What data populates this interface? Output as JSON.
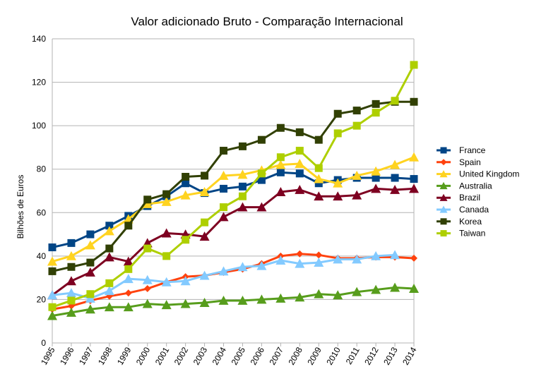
{
  "chart_data": {
    "type": "line",
    "title": "Valor adicionado Bruto - Comparação Internacional",
    "xlabel": "",
    "ylabel": "Bilhões de Euros",
    "ylim": [
      0,
      140
    ],
    "y_ticks": [
      0,
      20,
      40,
      60,
      80,
      100,
      120,
      140
    ],
    "grid": true,
    "legend_position": "right",
    "categories": [
      "1995",
      "1996",
      "1997",
      "1998",
      "1999",
      "2000",
      "2001",
      "2002",
      "2003",
      "2004",
      "2005",
      "2006",
      "2007",
      "2008",
      "2009",
      "2010",
      "2011",
      "2012",
      "2013",
      "2014"
    ],
    "series": [
      {
        "name": "France",
        "color": "#004586",
        "marker": "square",
        "values": [
          44,
          46,
          50,
          54,
          58.5,
          63,
          67.5,
          73.5,
          69,
          71,
          72,
          75,
          78.5,
          78,
          73.5,
          75,
          76,
          76,
          76,
          75.5
        ]
      },
      {
        "name": "Spain",
        "color": "#ff420e",
        "marker": "diamond",
        "values": [
          15.5,
          17,
          19.5,
          21.5,
          23,
          25,
          28,
          30.5,
          31,
          32.5,
          34,
          36.5,
          40,
          41,
          40.5,
          39,
          39,
          39.5,
          39.5,
          39
        ]
      },
      {
        "name": "United Kingdom",
        "color": "#ffd320",
        "marker": "triangle",
        "values": [
          37.5,
          40,
          45,
          51.5,
          57,
          64,
          65,
          68,
          69.5,
          77,
          77.5,
          79.5,
          82,
          82.5,
          75.5,
          73.5,
          77,
          79,
          82,
          85.5
        ]
      },
      {
        "name": "Australia",
        "color": "#579d1c",
        "marker": "triangle",
        "values": [
          12.5,
          14,
          15.5,
          16.5,
          16.5,
          18,
          17.5,
          18,
          18.5,
          19.5,
          19.5,
          20,
          20.5,
          21,
          22.5,
          22,
          23.5,
          24.5,
          25.5,
          25
        ]
      },
      {
        "name": "Brazil",
        "color": "#7e0021",
        "marker": "triangle",
        "values": [
          22,
          28.5,
          32.5,
          39.5,
          37.5,
          46,
          50.5,
          50,
          49,
          58,
          62.5,
          62.5,
          69.5,
          70.5,
          67.5,
          67.5,
          68,
          71,
          70.5,
          71
        ]
      },
      {
        "name": "Canada",
        "color": "#83caff",
        "marker": "triangle",
        "values": [
          22,
          23,
          20.5,
          24,
          29.5,
          29,
          28,
          28.5,
          31,
          33,
          35,
          35.5,
          38,
          36.5,
          37,
          38.5,
          38.5,
          40,
          40.5,
          null
        ]
      },
      {
        "name": "Korea",
        "color": "#314004",
        "marker": "square",
        "values": [
          33,
          35,
          37,
          43.5,
          54,
          66,
          68.5,
          76.5,
          77,
          88.5,
          90.5,
          93.5,
          99,
          97,
          93.5,
          105.5,
          107,
          110,
          111,
          111
        ]
      },
      {
        "name": "Taiwan",
        "color": "#aecf00",
        "marker": "square",
        "values": [
          16.5,
          19.5,
          22.5,
          27.5,
          34,
          43.5,
          40,
          47.5,
          55.5,
          62.5,
          67.5,
          78,
          85.5,
          88.5,
          80.5,
          96.5,
          100,
          106,
          111.5,
          128
        ]
      }
    ]
  }
}
